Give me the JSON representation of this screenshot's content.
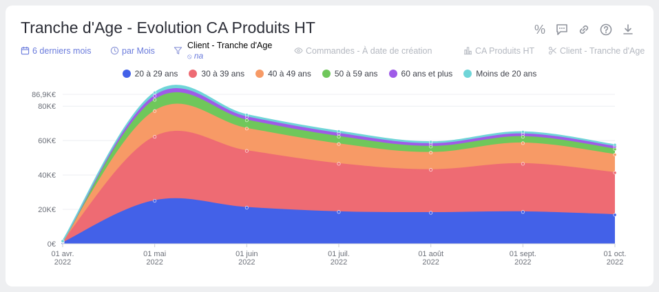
{
  "title": "Tranche d'Age - Evolution CA Produits HT",
  "actions": [
    {
      "name": "percent-icon",
      "glyph": "%"
    },
    {
      "name": "comment-icon",
      "glyph": ""
    },
    {
      "name": "link-icon",
      "glyph": ""
    },
    {
      "name": "help-icon",
      "glyph": ""
    },
    {
      "name": "download-icon",
      "glyph": ""
    }
  ],
  "filters": {
    "period": "6 derniers mois",
    "granularity": "par Mois",
    "client_filter": "Client - Tranche d'Age",
    "client_filter_value": "na",
    "orders": "Commandes - À date de création",
    "measure": "CA Produits HT",
    "dimension": "Client - Tranche d'Age"
  },
  "chart_data": {
    "type": "area",
    "stacked": true,
    "title": "Tranche d'Age - Evolution CA Produits HT",
    "x": [
      "2022-04-01",
      "2022-05-01",
      "2022-06-01",
      "2022-07-01",
      "2022-08-01",
      "2022-09-01",
      "2022-10-01"
    ],
    "x_tick_labels": [
      [
        "01 avr.",
        "2022"
      ],
      [
        "01 mai",
        "2022"
      ],
      [
        "01 juin",
        "2022"
      ],
      [
        "01 juil.",
        "2022"
      ],
      [
        "01 août",
        "2022"
      ],
      [
        "01 sept.",
        "2022"
      ],
      [
        "01 oct.",
        "2022"
      ]
    ],
    "y_ticks": [
      {
        "value": 0,
        "label": "0€"
      },
      {
        "value": 20000,
        "label": "20K€"
      },
      {
        "value": 40000,
        "label": "40K€"
      },
      {
        "value": 60000,
        "label": "60K€"
      },
      {
        "value": 80000,
        "label": "80K€"
      },
      {
        "value": 86900,
        "label": "86,9K€"
      }
    ],
    "ylim": [
      0,
      86900
    ],
    "legend_position": "top",
    "series": [
      {
        "name": "20 à 29 ans",
        "color": "#4361e8",
        "values": [
          500,
          25000,
          21000,
          18500,
          18000,
          18500,
          16800
        ]
      },
      {
        "name": "30 à 39 ans",
        "color": "#ee6b73",
        "values": [
          600,
          37200,
          33000,
          28000,
          25000,
          28000,
          24500
        ]
      },
      {
        "name": "40 à 49 ans",
        "color": "#f79a66",
        "values": [
          200,
          15000,
          13000,
          11500,
          10000,
          12000,
          10500
        ]
      },
      {
        "name": "50 à 59 ans",
        "color": "#6fc75b",
        "values": [
          100,
          6500,
          4800,
          4300,
          3500,
          3700,
          3200
        ]
      },
      {
        "name": "60 ans et plus",
        "color": "#9f5be8",
        "values": [
          100,
          2300,
          1900,
          1800,
          1600,
          1600,
          1500
        ]
      },
      {
        "name": "Moins de 20 ans",
        "color": "#6fd5d8",
        "values": [
          50,
          1900,
          1300,
          1300,
          1100,
          1200,
          1000
        ]
      }
    ]
  }
}
